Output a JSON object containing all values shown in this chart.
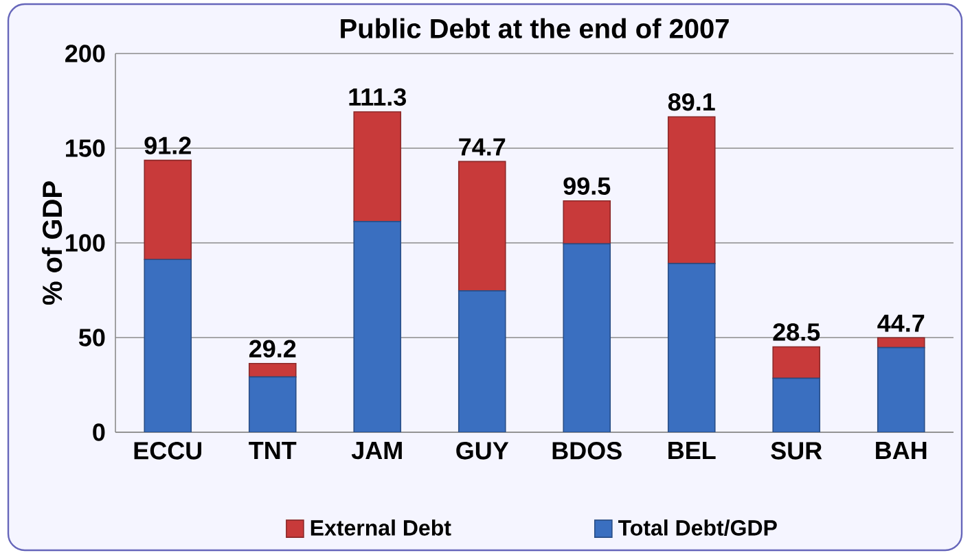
{
  "chart_data": {
    "type": "bar",
    "title": "Public Debt at the end of 2007",
    "ylabel": "% of GDP",
    "stacked": true,
    "categories": [
      "ECCU",
      "TNT",
      "JAM",
      "GUY",
      "BDOS",
      "BEL",
      "SUR",
      "BAH"
    ],
    "series": [
      {
        "name": "Total Debt/GDP",
        "color": "#3a6fc0",
        "values": [
          91.2,
          29.2,
          111.3,
          74.7,
          99.5,
          89.1,
          28.5,
          44.7
        ]
      },
      {
        "name": "External Debt",
        "color": "#c83a3a",
        "values": [
          52.4,
          7.1,
          57.9,
          68.3,
          22.7,
          77.5,
          16.6,
          5.2
        ]
      }
    ],
    "annotations": [
      {
        "text": "91.2",
        "x": "ECCU",
        "y": 143.6
      },
      {
        "text": "29.2",
        "x": "TNT",
        "y": 36.3
      },
      {
        "text": "111.3",
        "x": "JAM",
        "y": 169.2
      },
      {
        "text": "74.7",
        "x": "GUY",
        "y": 143
      },
      {
        "text": "99.5",
        "x": "BDOS",
        "y": 122.2
      },
      {
        "text": "89.1",
        "x": "BEL",
        "y": 166.6
      },
      {
        "text": "28.5",
        "x": "SUR",
        "y": 45.1
      },
      {
        "text": "44.7",
        "x": "BAH",
        "y": 49.9
      }
    ],
    "ylim": [
      0,
      200
    ],
    "yticks": [
      0,
      50,
      100,
      150,
      200
    ],
    "grid": "y",
    "legend": "bottom"
  }
}
